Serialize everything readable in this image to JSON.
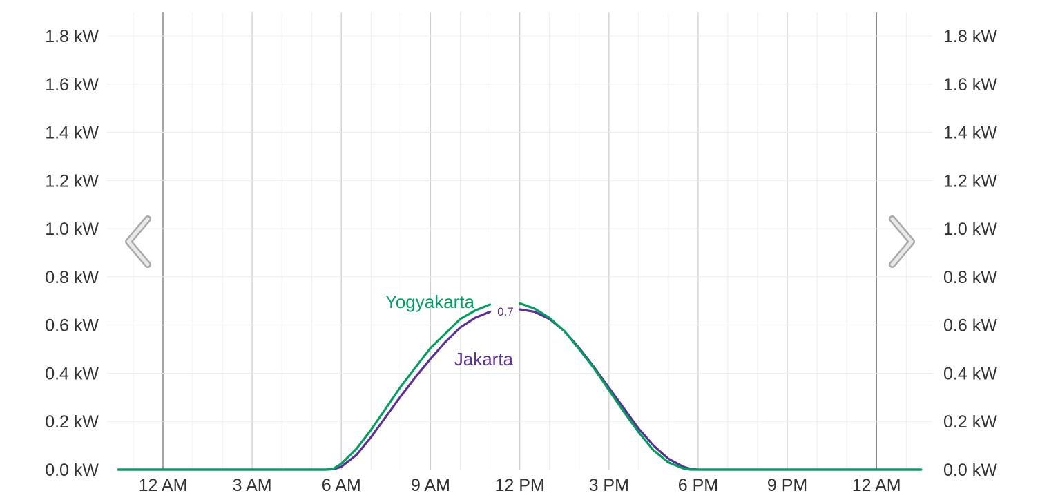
{
  "nav": {
    "prev_icon": "chevron-left-icon",
    "next_icon": "chevron-right-icon"
  },
  "colors": {
    "Yogyakarta": "#00a060",
    "Jakarta": "#5b2f9a",
    "grid_major": "#d0d0d0",
    "grid_minor": "#ececec",
    "day_boundary": "#777777",
    "arrow": "#cccccc"
  },
  "chart_data": {
    "type": "line",
    "xlabel": "",
    "ylabel": "",
    "unit": "kW",
    "x_range_hours": [
      -1.5,
      25.5
    ],
    "ylim": [
      0,
      1.8
    ],
    "grid": true,
    "y_ticks": [
      "0.0 kW",
      "0.2 kW",
      "0.4 kW",
      "0.6 kW",
      "0.8 kW",
      "1.0 kW",
      "1.2 kW",
      "1.4 kW",
      "1.6 kW",
      "1.8 kW"
    ],
    "x_ticks": [
      "12 AM",
      "3 AM",
      "6 AM",
      "9 AM",
      "12 PM",
      "3 PM",
      "6 PM",
      "9 PM",
      "12 AM"
    ],
    "x": [
      -1.5,
      0,
      3,
      5.5,
      5.75,
      6,
      6.5,
      7,
      7.5,
      8,
      8.5,
      9,
      9.5,
      10,
      10.5,
      11,
      11.5,
      12,
      12.5,
      13,
      13.5,
      14,
      14.5,
      15,
      15.5,
      16,
      16.5,
      17,
      17.5,
      17.75,
      18,
      18.5,
      21,
      24,
      25.5
    ],
    "series": [
      {
        "name": "Yogyakarta",
        "values": [
          0,
          0,
          0,
          0,
          0.005,
          0.025,
          0.085,
          0.165,
          0.255,
          0.345,
          0.425,
          0.505,
          0.565,
          0.625,
          0.66,
          0.685,
          null,
          0.69,
          0.668,
          0.63,
          0.575,
          0.5,
          0.42,
          0.33,
          0.24,
          0.155,
          0.08,
          0.03,
          0.005,
          0,
          0,
          0,
          0,
          0,
          0
        ]
      },
      {
        "name": "Jakarta",
        "values": [
          0,
          0,
          0,
          0,
          0.002,
          0.012,
          0.06,
          0.135,
          0.22,
          0.305,
          0.385,
          0.46,
          0.53,
          0.59,
          0.63,
          0.655,
          null,
          0.665,
          0.655,
          0.625,
          0.575,
          0.505,
          0.425,
          0.34,
          0.255,
          0.17,
          0.1,
          0.045,
          0.012,
          0.003,
          0,
          0,
          0,
          0,
          0
        ]
      }
    ],
    "annotations": [
      {
        "text": "Yogyakarta",
        "series": "Yogyakarta"
      },
      {
        "text": "Jakarta",
        "series": "Jakarta"
      },
      {
        "text": "0.7",
        "series": "Jakarta"
      }
    ]
  }
}
